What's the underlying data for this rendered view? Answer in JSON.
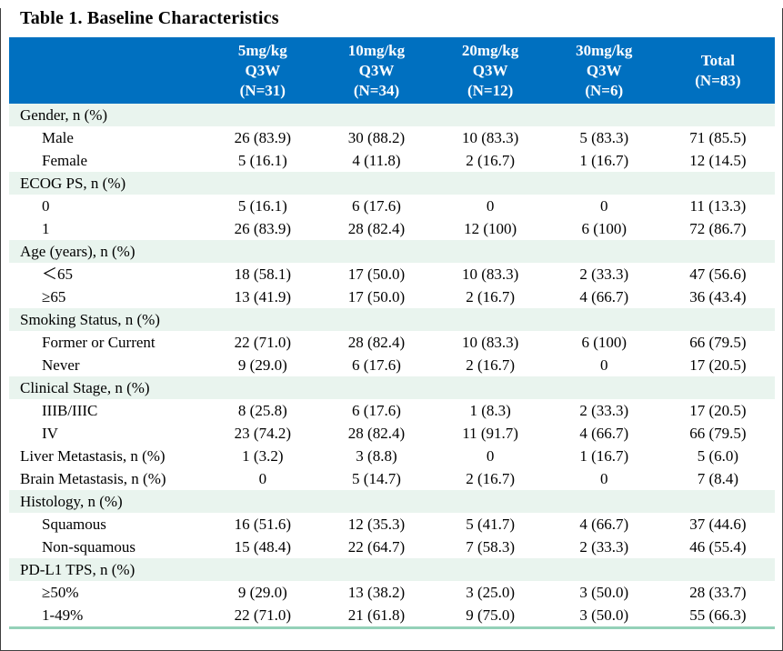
{
  "title": "Table 1. Baseline Characteristics",
  "table": {
    "header_color": "#0070C0",
    "section_row_color": "#E9F4EE",
    "bottom_rule_color": "#94D1B8",
    "columns": [
      {
        "lines": [
          "5mg/kg",
          "Q3W",
          "(N=31)"
        ]
      },
      {
        "lines": [
          "10mg/kg",
          "Q3W",
          "(N=34)"
        ]
      },
      {
        "lines": [
          "20mg/kg",
          "Q3W",
          "(N=12)"
        ]
      },
      {
        "lines": [
          "30mg/kg",
          "Q3W",
          "(N=6)"
        ]
      },
      {
        "lines": [
          "Total",
          "(N=83)"
        ]
      }
    ],
    "rows": [
      {
        "type": "section",
        "label": "Gender, n (%)",
        "values": []
      },
      {
        "type": "data",
        "label": "Male",
        "values": [
          "26 (83.9)",
          "30 (88.2)",
          "10 (83.3)",
          "5 (83.3)",
          "71 (85.5)"
        ]
      },
      {
        "type": "data",
        "label": "Female",
        "values": [
          "5 (16.1)",
          "4 (11.8)",
          "2 (16.7)",
          "1 (16.7)",
          "12 (14.5)"
        ]
      },
      {
        "type": "section",
        "label": "ECOG PS, n (%)",
        "values": []
      },
      {
        "type": "data",
        "label": "0",
        "values": [
          "5 (16.1)",
          "6 (17.6)",
          "0",
          "0",
          "11 (13.3)"
        ]
      },
      {
        "type": "data",
        "label": "1",
        "values": [
          "26 (83.9)",
          "28 (82.4)",
          "12 (100)",
          "6 (100)",
          "72 (86.7)"
        ]
      },
      {
        "type": "section",
        "label": "Age (years), n (%)",
        "values": []
      },
      {
        "type": "data",
        "label": "＜65",
        "values": [
          "18 (58.1)",
          "17 (50.0)",
          "10 (83.3)",
          "2 (33.3)",
          "47 (56.6)"
        ]
      },
      {
        "type": "data",
        "label": "≥65",
        "values": [
          "13 (41.9)",
          "17 (50.0)",
          "2 (16.7)",
          "4 (66.7)",
          "36 (43.4)"
        ]
      },
      {
        "type": "section",
        "label": "Smoking Status, n (%)",
        "values": []
      },
      {
        "type": "data",
        "label": "Former or Current",
        "values": [
          "22 (71.0)",
          "28 (82.4)",
          "10 (83.3)",
          "6 (100)",
          "66 (79.5)"
        ]
      },
      {
        "type": "data",
        "label": "Never",
        "values": [
          "9 (29.0)",
          "6 (17.6)",
          "2 (16.7)",
          "0",
          "17 (20.5)"
        ]
      },
      {
        "type": "section",
        "label": "Clinical Stage, n (%)",
        "values": []
      },
      {
        "type": "data",
        "label": "IIIB/IIIC",
        "values": [
          "8 (25.8)",
          "6 (17.6)",
          "1 (8.3)",
          "2 (33.3)",
          "17 (20.5)"
        ]
      },
      {
        "type": "data",
        "label": "IV",
        "values": [
          "23 (74.2)",
          "28 (82.4)",
          "11 (91.7)",
          "4 (66.7)",
          "66 (79.5)"
        ]
      },
      {
        "type": "labeldata",
        "label": "Liver Metastasis, n (%)",
        "values": [
          "1 (3.2)",
          "3 (8.8)",
          "0",
          "1 (16.7)",
          "5 (6.0)"
        ]
      },
      {
        "type": "labeldata",
        "label": "Brain Metastasis, n (%)",
        "values": [
          "0",
          "5 (14.7)",
          "2 (16.7)",
          "0",
          "7 (8.4)"
        ]
      },
      {
        "type": "section",
        "label": "Histology, n (%)",
        "values": []
      },
      {
        "type": "data",
        "label": "Squamous",
        "values": [
          "16 (51.6)",
          "12 (35.3)",
          "5 (41.7)",
          "4 (66.7)",
          "37 (44.6)"
        ]
      },
      {
        "type": "data",
        "label": "Non-squamous",
        "values": [
          "15 (48.4)",
          "22 (64.7)",
          "7 (58.3)",
          "2 (33.3)",
          "46 (55.4)"
        ]
      },
      {
        "type": "section",
        "label": "PD-L1 TPS, n (%)",
        "values": []
      },
      {
        "type": "data",
        "label": "≥50%",
        "values": [
          "9 (29.0)",
          "13 (38.2)",
          "3 (25.0)",
          "3 (50.0)",
          "28 (33.7)"
        ]
      },
      {
        "type": "data",
        "label": "1-49%",
        "values": [
          "22 (71.0)",
          "21 (61.8)",
          "9 (75.0)",
          "3 (50.0)",
          "55 (66.3)"
        ]
      }
    ]
  }
}
